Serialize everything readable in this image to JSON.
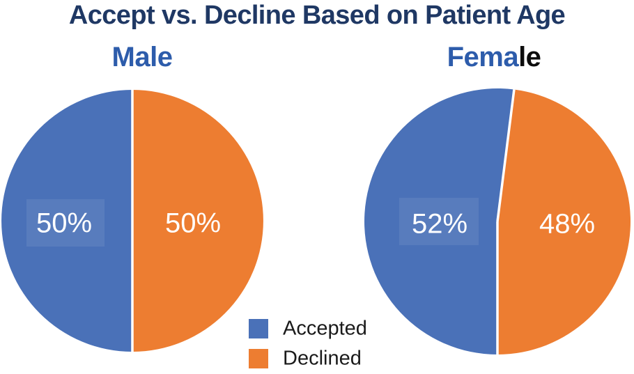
{
  "title": "Accept vs. Decline Based on Patient Age",
  "colors": {
    "accepted": "#4a71b8",
    "declined": "#ed7d31",
    "divider": "#ffffff",
    "title_text": "#1f3864",
    "chart_title_blue": "#2d5cab",
    "female_title_black": "#0d0d0d",
    "legend_text": "#1a1a1a",
    "slice_label_text": "#ffffff"
  },
  "legend": {
    "position": "bottom-center",
    "items": [
      {
        "label": "Accepted",
        "color": "#4a71b8"
      },
      {
        "label": "Declined",
        "color": "#ed7d31"
      }
    ]
  },
  "chart_data": [
    {
      "type": "pie",
      "title": "Male",
      "categories": [
        "Accepted",
        "Declined"
      ],
      "values": [
        50,
        50
      ],
      "slice_labels": [
        "50%",
        "50%"
      ],
      "slice_colors": [
        "#4a71b8",
        "#ed7d31"
      ],
      "layout": "Accepted on left half, Declined on right half, vertical white divider"
    },
    {
      "type": "pie",
      "title": "Female",
      "title_parts": [
        {
          "text": "Fema",
          "color": "#2d5cab"
        },
        {
          "text": "le",
          "color": "#0d0d0d"
        }
      ],
      "categories": [
        "Accepted",
        "Declined"
      ],
      "values": [
        52,
        48
      ],
      "slice_labels": [
        "52%",
        "48%"
      ],
      "slice_colors": [
        "#4a71b8",
        "#ed7d31"
      ],
      "layout": "Accepted on left, Declined on right, top divider tilted ~7° clockwise, white dividers"
    }
  ]
}
